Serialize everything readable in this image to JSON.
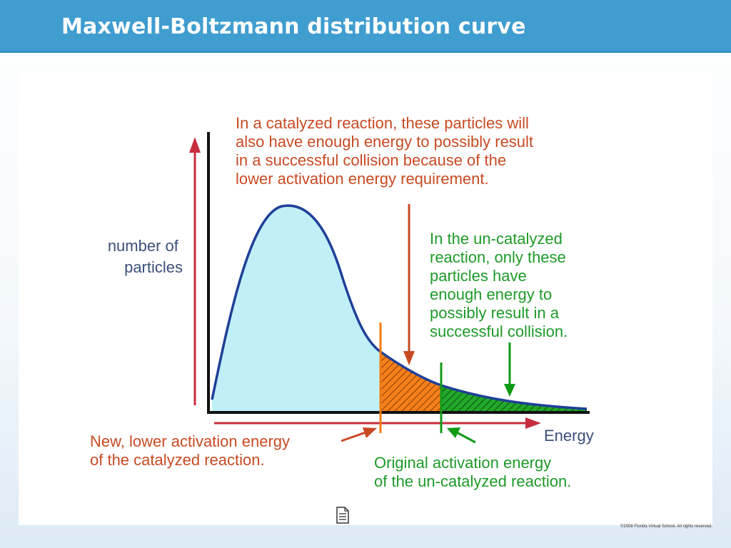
{
  "slide": {
    "title": "Maxwell-Boltzmann distribution curve",
    "copyright": "©2008 Florida Virtual School. All rights reserved.",
    "icon": "document-icon"
  },
  "diagram": {
    "y_axis_label": [
      "number of",
      "particles"
    ],
    "x_axis_label": "Energy",
    "catalyzed_note": [
      "In a catalyzed reaction, these particles will",
      "also have enough energy to possibly result",
      "in a successful collision because of the",
      "lower activation energy requirement."
    ],
    "uncatalyzed_note": [
      "In the un-catalyzed",
      "reaction, only these",
      "particles have",
      "enough energy to",
      "possibly result in a",
      "successful collision."
    ],
    "new_activation_label": [
      "New, lower activation energy",
      "of the catalyzed reaction."
    ],
    "original_activation_label": [
      "Original activation energy",
      "of the un-catalyzed reaction."
    ],
    "colors": {
      "curve": "#1f3f99",
      "fill": "#bff0f7",
      "orange": "#f07a10",
      "green": "#119a16",
      "catalyzed_text": "#c84a23",
      "uncatalyzed_text": "#1e9a28",
      "axis_label_text": "#3b4f7a",
      "axis_arrow": "#c62d3e"
    }
  }
}
